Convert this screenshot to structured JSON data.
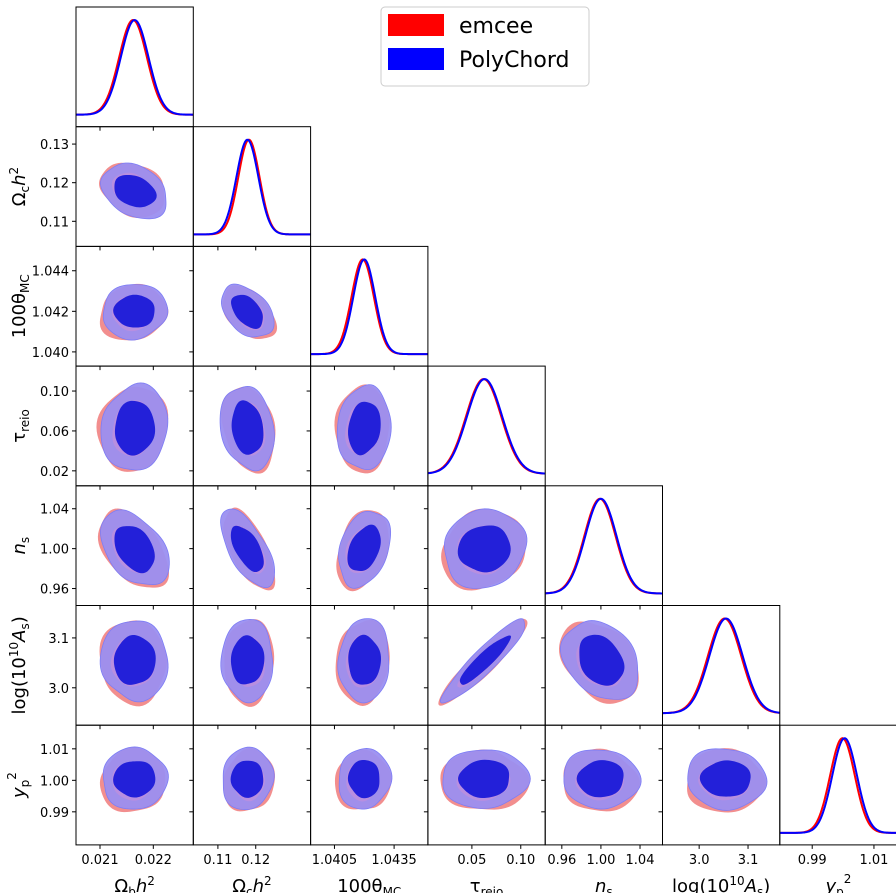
{
  "chart_data": {
    "type": "triangle-corner-plot",
    "legend": {
      "placement": "top-center",
      "entries": [
        {
          "label": "emcee",
          "color": "#ff0000"
        },
        {
          "label": "PolyChord",
          "color": "#0000ff"
        }
      ]
    },
    "series": [
      {
        "name": "emcee",
        "color": "#ff0000"
      },
      {
        "name": "PolyChord",
        "color": "#0000ff"
      }
    ],
    "contour_colors": {
      "inner": "#1a1ad8",
      "outer": "#9b8ff0",
      "outer_red_edge": "#f07a7a"
    },
    "parameters": [
      {
        "key": "omegabh2",
        "label": "Ωbh2",
        "range": [
          0.02055,
          0.02275
        ],
        "ticks": [
          "0.021",
          "0.022"
        ],
        "mean": {
          "emcee": 0.02162,
          "PolyChord": 0.02165
        },
        "sigma": {
          "emcee": 0.00026,
          "PolyChord": 0.00026
        }
      },
      {
        "key": "omegach2",
        "label": "Ωch2",
        "range": [
          0.1035,
          0.1345
        ],
        "ticks": [
          "0.11",
          "0.12"
        ],
        "mean": {
          "emcee": 0.1182,
          "PolyChord": 0.1178
        },
        "sigma": {
          "emcee": 0.0028,
          "PolyChord": 0.0029
        },
        "row_ticks": [
          "0.11",
          "0.12",
          "0.13"
        ],
        "row_tick_values": [
          0.11,
          0.12,
          0.13
        ]
      },
      {
        "key": "theta",
        "label": "100θMC",
        "range": [
          1.0393,
          1.0452
        ],
        "ticks": [
          "1.0405",
          "1.0435"
        ],
        "mean": {
          "emcee": 1.04192,
          "PolyChord": 1.042
        },
        "sigma": {
          "emcee": 0.00056,
          "PolyChord": 0.00055
        },
        "row_ticks": [
          "1.040",
          "1.042",
          "1.044"
        ],
        "row_tick_values": [
          1.04,
          1.042,
          1.044
        ]
      },
      {
        "key": "tau",
        "label": "τreio",
        "range": [
          0.005,
          0.125
        ],
        "ticks": [
          "0.05",
          "0.10"
        ],
        "mean": {
          "emcee": 0.062,
          "PolyChord": 0.063
        },
        "sigma": {
          "emcee": 0.018,
          "PolyChord": 0.018
        },
        "row_ticks": [
          "0.02",
          "0.06",
          "0.10"
        ],
        "row_tick_values": [
          0.02,
          0.06,
          0.1
        ]
      },
      {
        "key": "ns",
        "label": "ns",
        "range": [
          0.943,
          1.063
        ],
        "ticks": [
          "0.96",
          "1.00",
          "1.04"
        ],
        "mean": {
          "emcee": 0.999,
          "PolyChord": 1.0
        },
        "sigma": {
          "emcee": 0.016,
          "PolyChord": 0.016
        },
        "row_ticks": [
          "0.96",
          "1.00",
          "1.04"
        ],
        "row_tick_values": [
          0.96,
          1.0,
          1.04
        ]
      },
      {
        "key": "logA",
        "label": "log(1010As)",
        "range": [
          2.925,
          3.165
        ],
        "ticks": [
          "3.0",
          "3.1"
        ],
        "mean": {
          "emcee": 3.052,
          "PolyChord": 3.055
        },
        "sigma": {
          "emcee": 0.034,
          "PolyChord": 0.034
        },
        "row_ticks": [
          "3.0",
          "3.1"
        ],
        "row_tick_values": [
          3.0,
          3.1
        ]
      },
      {
        "key": "yp2",
        "label": "yp2",
        "range": [
          0.9795,
          1.0175
        ],
        "ticks": [
          "0.99",
          "1.01"
        ],
        "mean": {
          "emcee": 0.9998,
          "PolyChord": 1.0005
        },
        "sigma": {
          "emcee": 0.004,
          "PolyChord": 0.004
        },
        "row_ticks": [
          "0.99",
          "1.00",
          "1.01"
        ],
        "row_tick_values": [
          0.99,
          1.0,
          1.01
        ]
      }
    ],
    "correlations": {
      "1_0": -0.25,
      "2_0": 0.05,
      "2_1": -0.45,
      "3_0": 0.05,
      "3_1": -0.2,
      "3_2": 0.1,
      "4_0": -0.4,
      "4_1": -0.6,
      "4_2": 0.35,
      "4_3": 0.1,
      "5_0": 0.0,
      "5_1": 0.05,
      "5_2": 0.05,
      "5_3": 0.92,
      "5_4": -0.3,
      "6_0": 0.05,
      "6_1": 0.05,
      "6_2": 0.0,
      "6_3": 0.0,
      "6_4": 0.0,
      "6_5": 0.0
    }
  }
}
